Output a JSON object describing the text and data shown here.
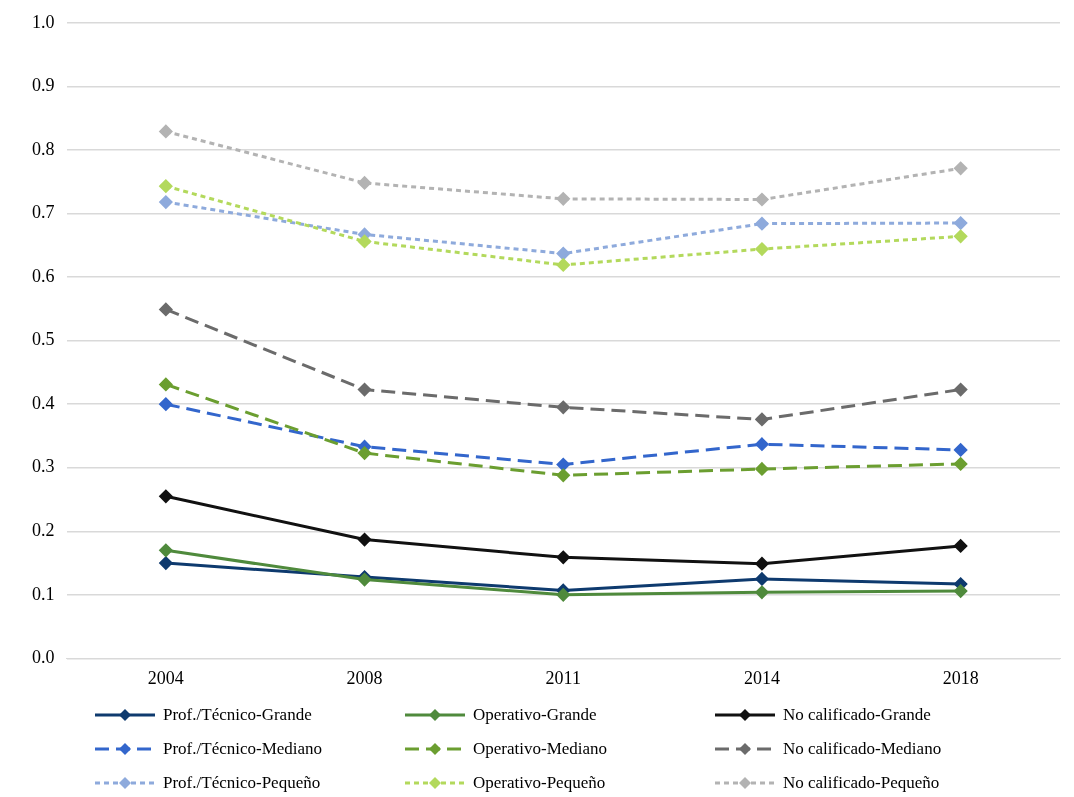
{
  "chart_data": {
    "type": "line",
    "categories": [
      "2004",
      "2008",
      "2011",
      "2014",
      "2018"
    ],
    "series": [
      {
        "name": "Prof./Técnico-Grande",
        "color": "#0e3a6e",
        "line_style": "solid",
        "values": [
          0.15,
          0.128,
          0.107,
          0.125,
          0.117
        ]
      },
      {
        "name": "Operativo-Grande",
        "color": "#4f8a3c",
        "line_style": "solid",
        "values": [
          0.17,
          0.124,
          0.1,
          0.104,
          0.106
        ]
      },
      {
        "name": "No calificado-Grande",
        "color": "#111111",
        "line_style": "solid",
        "values": [
          0.255,
          0.187,
          0.159,
          0.149,
          0.177
        ]
      },
      {
        "name": "Prof./Técnico-Mediano",
        "color": "#3366cc",
        "line_style": "dashed",
        "values": [
          0.4,
          0.333,
          0.305,
          0.337,
          0.328
        ]
      },
      {
        "name": "Operativo-Mediano",
        "color": "#6b9e30",
        "line_style": "dashed",
        "values": [
          0.431,
          0.323,
          0.288,
          0.298,
          0.306
        ]
      },
      {
        "name": "No calificado-Mediano",
        "color": "#6b6b6b",
        "line_style": "dashed",
        "values": [
          0.549,
          0.423,
          0.395,
          0.376,
          0.423
        ]
      },
      {
        "name": "Prof./Técnico-Pequeño",
        "color": "#8eaadc",
        "line_style": "dotted",
        "values": [
          0.718,
          0.667,
          0.637,
          0.684,
          0.685
        ]
      },
      {
        "name": "Operativo-Pequeño",
        "color": "#b3d95c",
        "line_style": "dotted",
        "values": [
          0.743,
          0.656,
          0.619,
          0.644,
          0.664
        ]
      },
      {
        "name": "No calificado-Pequeño",
        "color": "#b3b3b3",
        "line_style": "dotted",
        "values": [
          0.829,
          0.748,
          0.723,
          0.722,
          0.771
        ]
      }
    ],
    "ylim": [
      0,
      1
    ],
    "yticks": [
      {
        "value": 0,
        "label": "0.0"
      },
      {
        "value": 0.1,
        "label": "0.1"
      },
      {
        "value": 0.2,
        "label": "0.2"
      },
      {
        "value": 0.3,
        "label": "0.3"
      },
      {
        "value": 0.4,
        "label": "0.4"
      },
      {
        "value": 0.5,
        "label": "0.5"
      },
      {
        "value": 0.6,
        "label": "0.6"
      },
      {
        "value": 0.7,
        "label": "0.7"
      },
      {
        "value": 0.8,
        "label": "0.8"
      },
      {
        "value": 0.9,
        "label": "0.9"
      },
      {
        "value": 1,
        "label": "1.0"
      }
    ],
    "grid": "y",
    "marker": "diamond",
    "legend": "bottom"
  }
}
